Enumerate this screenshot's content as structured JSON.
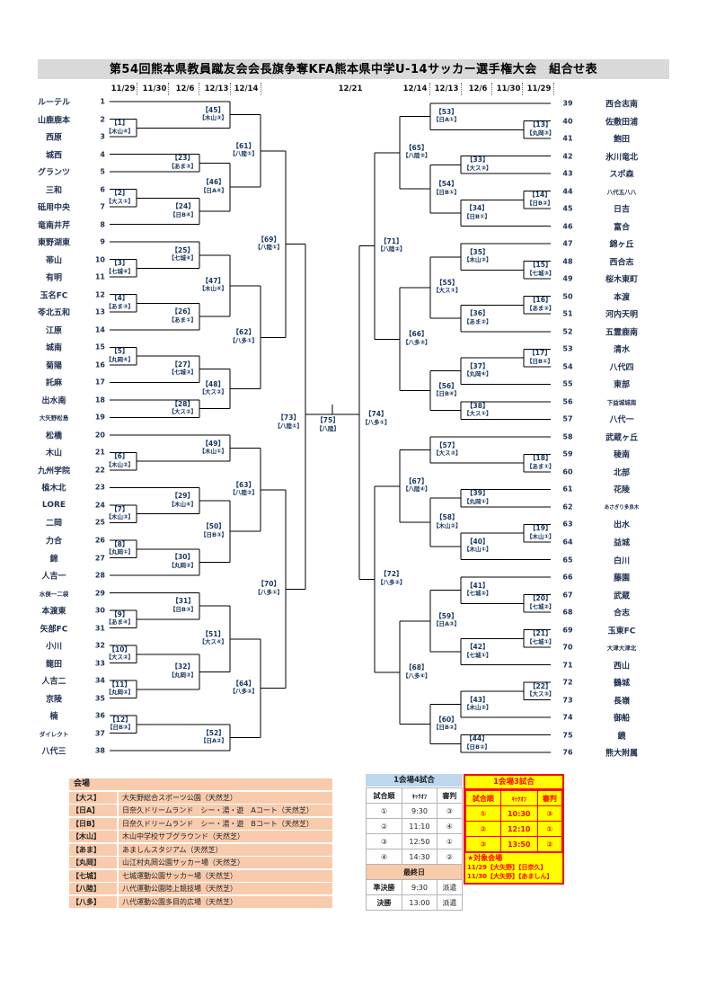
{
  "title": "第54回熊本県教員蹴友会会長旗争奪KFA熊本県中学U-14サッカー選手権大会　組合せ表",
  "dates_left": [
    "11/29",
    "11/30",
    "12/6",
    "12/13",
    "12/14"
  ],
  "date_center": "12/21",
  "dates_right": [
    "12/14",
    "12/13",
    "12/6",
    "11/30",
    "11/29"
  ],
  "teams_left": [
    {
      "no": 1,
      "name": "ルーテル"
    },
    {
      "no": 2,
      "name": "山鹿鹿本"
    },
    {
      "no": 3,
      "name": "西原"
    },
    {
      "no": 4,
      "name": "城西"
    },
    {
      "no": 5,
      "name": "グランツ"
    },
    {
      "no": 6,
      "name": "三和"
    },
    {
      "no": 7,
      "name": "砥用中央"
    },
    {
      "no": 8,
      "name": "竜南井芹"
    },
    {
      "no": 9,
      "name": "東野湖東"
    },
    {
      "no": 10,
      "name": "帯山"
    },
    {
      "no": 11,
      "name": "有明"
    },
    {
      "no": 12,
      "name": "玉名FC"
    },
    {
      "no": 13,
      "name": "苓北五和"
    },
    {
      "no": 14,
      "name": "江原"
    },
    {
      "no": 15,
      "name": "城南"
    },
    {
      "no": 16,
      "name": "菊陽"
    },
    {
      "no": 17,
      "name": "託麻"
    },
    {
      "no": 18,
      "name": "出水南"
    },
    {
      "no": 19,
      "name": "大矢野松島"
    },
    {
      "no": 20,
      "name": "松橋"
    },
    {
      "no": 21,
      "name": "木山"
    },
    {
      "no": 22,
      "name": "九州学院"
    },
    {
      "no": 23,
      "name": "植木北"
    },
    {
      "no": 24,
      "name": "LORE"
    },
    {
      "no": 25,
      "name": "二岡"
    },
    {
      "no": 26,
      "name": "力合"
    },
    {
      "no": 27,
      "name": "錦"
    },
    {
      "no": 28,
      "name": "人吉一"
    },
    {
      "no": 29,
      "name": "水俣一二袋"
    },
    {
      "no": 30,
      "name": "本渡東"
    },
    {
      "no": 31,
      "name": "矢部FC"
    },
    {
      "no": 32,
      "name": "小川"
    },
    {
      "no": 33,
      "name": "龍田"
    },
    {
      "no": 34,
      "name": "人吉二"
    },
    {
      "no": 35,
      "name": "京陵"
    },
    {
      "no": 36,
      "name": "楠"
    },
    {
      "no": 37,
      "name": "ダイレクト"
    },
    {
      "no": 38,
      "name": "八代三"
    }
  ],
  "teams_right": [
    {
      "no": 39,
      "name": "西合志南"
    },
    {
      "no": 40,
      "name": "佐敷田浦"
    },
    {
      "no": 41,
      "name": "飽田"
    },
    {
      "no": 42,
      "name": "氷川竜北"
    },
    {
      "no": 43,
      "name": "スポ森"
    },
    {
      "no": 44,
      "name": "八代五八八"
    },
    {
      "no": 45,
      "name": "日吉"
    },
    {
      "no": 46,
      "name": "富合"
    },
    {
      "no": 47,
      "name": "錦ヶ丘"
    },
    {
      "no": 48,
      "name": "西合志"
    },
    {
      "no": 49,
      "name": "桜木東町"
    },
    {
      "no": 50,
      "name": "本渡"
    },
    {
      "no": 51,
      "name": "河内天明"
    },
    {
      "no": 52,
      "name": "五霊鹿南"
    },
    {
      "no": 53,
      "name": "清水"
    },
    {
      "no": 54,
      "name": "八代四"
    },
    {
      "no": 55,
      "name": "東部"
    },
    {
      "no": 56,
      "name": "下益城城南"
    },
    {
      "no": 57,
      "name": "八代一"
    },
    {
      "no": 58,
      "name": "武蔵ヶ丘"
    },
    {
      "no": 59,
      "name": "稜南"
    },
    {
      "no": 60,
      "name": "北部"
    },
    {
      "no": 61,
      "name": "花陵"
    },
    {
      "no": 62,
      "name": "あさぎり多良木"
    },
    {
      "no": 63,
      "name": "出水"
    },
    {
      "no": 64,
      "name": "益城"
    },
    {
      "no": 65,
      "name": "白川"
    },
    {
      "no": 66,
      "name": "藤園"
    },
    {
      "no": 67,
      "name": "武蔵"
    },
    {
      "no": 68,
      "name": "合志"
    },
    {
      "no": 69,
      "name": "玉東FC"
    },
    {
      "no": 70,
      "name": "大津大津北"
    },
    {
      "no": 71,
      "name": "西山"
    },
    {
      "no": 72,
      "name": "鶴城"
    },
    {
      "no": 73,
      "name": "長嶺"
    },
    {
      "no": 74,
      "name": "御船"
    },
    {
      "no": 75,
      "name": "鏡"
    },
    {
      "no": 76,
      "name": "熊大附属"
    }
  ],
  "matches": [
    {
      "id": 1,
      "venue": "木山④",
      "side": "L",
      "round": 1,
      "a": "t2",
      "b": "t3"
    },
    {
      "id": 2,
      "venue": "大ス①",
      "side": "L",
      "round": 1,
      "a": "t6",
      "b": "t7"
    },
    {
      "id": 3,
      "venue": "七城④",
      "side": "L",
      "round": 1,
      "a": "t10",
      "b": "t11"
    },
    {
      "id": 4,
      "venue": "あま③",
      "side": "L",
      "round": 1,
      "a": "t12",
      "b": "t13"
    },
    {
      "id": 5,
      "venue": "丸岡④",
      "side": "L",
      "round": 1,
      "a": "t15",
      "b": "t16"
    },
    {
      "id": 6,
      "venue": "木山②",
      "side": "L",
      "round": 1,
      "a": "t21",
      "b": "t22"
    },
    {
      "id": 7,
      "venue": "木山③",
      "side": "L",
      "round": 1,
      "a": "t24",
      "b": "t25"
    },
    {
      "id": 8,
      "venue": "丸岡①",
      "side": "L",
      "round": 1,
      "a": "t26",
      "b": "t27"
    },
    {
      "id": 9,
      "venue": "あま④",
      "side": "L",
      "round": 1,
      "a": "t30",
      "b": "t31"
    },
    {
      "id": 10,
      "venue": "大ス②",
      "side": "L",
      "round": 1,
      "a": "t32",
      "b": "t33"
    },
    {
      "id": 11,
      "venue": "丸岡②",
      "side": "L",
      "round": 1,
      "a": "t34",
      "b": "t35"
    },
    {
      "id": 12,
      "venue": "日B③",
      "side": "L",
      "round": 1,
      "a": "t36",
      "b": "t37"
    },
    {
      "id": 13,
      "venue": "丸岡③",
      "side": "R",
      "round": 1,
      "a": "t40",
      "b": "t41"
    },
    {
      "id": 14,
      "venue": "日B②",
      "side": "R",
      "round": 1,
      "a": "t44",
      "b": "t45"
    },
    {
      "id": 15,
      "venue": "七城③",
      "side": "R",
      "round": 1,
      "a": "t48",
      "b": "t49"
    },
    {
      "id": 16,
      "venue": "あま②",
      "side": "R",
      "round": 1,
      "a": "t50",
      "b": "t51"
    },
    {
      "id": 17,
      "venue": "日B①",
      "side": "R",
      "round": 1,
      "a": "t53",
      "b": "t54"
    },
    {
      "id": 18,
      "venue": "あま①",
      "side": "R",
      "round": 1,
      "a": "t59",
      "b": "t60"
    },
    {
      "id": 19,
      "venue": "木山①",
      "side": "R",
      "round": 1,
      "a": "t63",
      "b": "t64"
    },
    {
      "id": 20,
      "venue": "七城②",
      "side": "R",
      "round": 1,
      "a": "t67",
      "b": "t68"
    },
    {
      "id": 21,
      "venue": "七城①",
      "side": "R",
      "round": 1,
      "a": "t69",
      "b": "t70"
    },
    {
      "id": 22,
      "venue": "大ス③",
      "side": "R",
      "round": 1,
      "a": "t72",
      "b": "t73"
    },
    {
      "id": 23,
      "venue": "あま③",
      "side": "L",
      "round": 2,
      "a": "t4",
      "b": "t5"
    },
    {
      "id": 24,
      "venue": "日B④",
      "side": "L",
      "round": 2,
      "a": "m2",
      "b": "t8"
    },
    {
      "id": 25,
      "venue": "七城④",
      "side": "L",
      "round": 2,
      "a": "t9",
      "b": "m3"
    },
    {
      "id": 26,
      "venue": "あま①",
      "side": "L",
      "round": 2,
      "a": "m4",
      "b": "t14"
    },
    {
      "id": 27,
      "venue": "七城③",
      "side": "L",
      "round": 2,
      "a": "m5",
      "b": "t17"
    },
    {
      "id": 28,
      "venue": "大ス②",
      "side": "L",
      "round": 2,
      "a": "t18",
      "b": "t19"
    },
    {
      "id": 29,
      "venue": "木山④",
      "side": "L",
      "round": 2,
      "a": "t23",
      "b": "m7"
    },
    {
      "id": 30,
      "venue": "丸岡②",
      "side": "L",
      "round": 2,
      "a": "m8",
      "b": "t28"
    },
    {
      "id": 31,
      "venue": "日B③",
      "side": "L",
      "round": 2,
      "a": "t29",
      "b": "m9"
    },
    {
      "id": 32,
      "venue": "丸岡③",
      "side": "L",
      "round": 2,
      "a": "m10",
      "b": "m11"
    },
    {
      "id": 33,
      "venue": "大ス③",
      "side": "R",
      "round": 2,
      "a": "t42",
      "b": "t43"
    },
    {
      "id": 34,
      "venue": "日B①",
      "side": "R",
      "round": 2,
      "a": "m14",
      "b": "t46"
    },
    {
      "id": 35,
      "venue": "木山③",
      "side": "R",
      "round": 2,
      "a": "t47",
      "b": "m15"
    },
    {
      "id": 36,
      "venue": "あま②",
      "side": "R",
      "round": 2,
      "a": "m16",
      "b": "t52"
    },
    {
      "id": 37,
      "venue": "丸岡④",
      "side": "R",
      "round": 2,
      "a": "m17",
      "b": "t55"
    },
    {
      "id": 38,
      "venue": "大ス①",
      "side": "R",
      "round": 2,
      "a": "t56",
      "b": "t57"
    },
    {
      "id": 39,
      "venue": "丸岡①",
      "side": "R",
      "round": 2,
      "a": "t61",
      "b": "t62"
    },
    {
      "id": 40,
      "venue": "木山①",
      "side": "R",
      "round": 2,
      "a": "m19",
      "b": "t65"
    },
    {
      "id": 41,
      "venue": "七城②",
      "side": "R",
      "round": 2,
      "a": "t66",
      "b": "m20"
    },
    {
      "id": 42,
      "venue": "七城①",
      "side": "R",
      "round": 2,
      "a": "m21",
      "b": "t71"
    },
    {
      "id": 43,
      "venue": "木山②",
      "side": "R",
      "round": 2,
      "a": "m22",
      "b": "t74"
    },
    {
      "id": 44,
      "venue": "日B②",
      "side": "R",
      "round": 2,
      "a": "t75",
      "b": "t76"
    },
    {
      "id": 45,
      "venue": "木山③",
      "side": "L",
      "round": 3,
      "a": "t1",
      "b": "m1"
    },
    {
      "id": 46,
      "venue": "日A④",
      "side": "L",
      "round": 3,
      "a": "m23",
      "b": "m24"
    },
    {
      "id": 47,
      "venue": "木山④",
      "side": "L",
      "round": 3,
      "a": "m25",
      "b": "m26"
    },
    {
      "id": 48,
      "venue": "大ス②",
      "side": "L",
      "round": 3,
      "a": "m27",
      "b": "m28"
    },
    {
      "id": 49,
      "venue": "木山①",
      "side": "L",
      "round": 3,
      "a": "t20",
      "b": "m6"
    },
    {
      "id": 50,
      "venue": "日B③",
      "side": "L",
      "round": 3,
      "a": "m29",
      "b": "m30"
    },
    {
      "id": 51,
      "venue": "大ス④",
      "side": "L",
      "round": 3,
      "a": "m31",
      "b": "m32"
    },
    {
      "id": 52,
      "venue": "日A②",
      "side": "L",
      "round": 3,
      "a": "m12",
      "b": "t38"
    },
    {
      "id": 53,
      "venue": "日A①",
      "side": "R",
      "round": 3,
      "a": "t39",
      "b": "m13"
    },
    {
      "id": 54,
      "venue": "日B①",
      "side": "R",
      "round": 3,
      "a": "m33",
      "b": "m34"
    },
    {
      "id": 55,
      "venue": "大ス①",
      "side": "R",
      "round": 3,
      "a": "m35",
      "b": "m36"
    },
    {
      "id": 56,
      "venue": "日B④",
      "side": "R",
      "round": 3,
      "a": "m37",
      "b": "m38"
    },
    {
      "id": 57,
      "venue": "大ス③",
      "side": "R",
      "round": 3,
      "a": "t58",
      "b": "m18"
    },
    {
      "id": 58,
      "venue": "木山②",
      "side": "R",
      "round": 3,
      "a": "m39",
      "b": "m40"
    },
    {
      "id": 59,
      "venue": "日A③",
      "side": "R",
      "round": 3,
      "a": "m41",
      "b": "m42"
    },
    {
      "id": 60,
      "venue": "日B②",
      "side": "R",
      "round": 3,
      "a": "m43",
      "b": "m44"
    },
    {
      "id": 61,
      "venue": "八陸①",
      "side": "L",
      "round": 4,
      "a": "m45",
      "b": "m46"
    },
    {
      "id": 62,
      "venue": "八多①",
      "side": "L",
      "round": 4,
      "a": "m47",
      "b": "m48"
    },
    {
      "id": 63,
      "venue": "八陸②",
      "side": "L",
      "round": 4,
      "a": "m49",
      "b": "m50"
    },
    {
      "id": 64,
      "venue": "八多②",
      "side": "L",
      "round": 4,
      "a": "m51",
      "b": "m52"
    },
    {
      "id": 65,
      "venue": "八陸③",
      "side": "R",
      "round": 4,
      "a": "m53",
      "b": "m54"
    },
    {
      "id": 66,
      "venue": "八多③",
      "side": "R",
      "round": 4,
      "a": "m55",
      "b": "m56"
    },
    {
      "id": 67,
      "venue": "八陸④",
      "side": "R",
      "round": 4,
      "a": "m57",
      "b": "m58"
    },
    {
      "id": 68,
      "venue": "八多④",
      "side": "R",
      "round": 4,
      "a": "m59",
      "b": "m60"
    },
    {
      "id": 69,
      "venue": "八陸①",
      "side": "L",
      "round": 5,
      "a": "m61",
      "b": "m62"
    },
    {
      "id": 70,
      "venue": "八多①",
      "side": "L",
      "round": 5,
      "a": "m63",
      "b": "m64"
    },
    {
      "id": 71,
      "venue": "八陸②",
      "side": "R",
      "round": 5,
      "a": "m65",
      "b": "m66"
    },
    {
      "id": 72,
      "venue": "八多②",
      "side": "R",
      "round": 5,
      "a": "m67",
      "b": "m68"
    },
    {
      "id": 73,
      "venue": "八陸①",
      "side": "L",
      "round": 6,
      "a": "m69",
      "b": "m70"
    },
    {
      "id": 74,
      "venue": "八多①",
      "side": "R",
      "round": 6,
      "a": "m71",
      "b": "m72"
    }
  ],
  "final_match": {
    "id": 75,
    "venue": "八陸",
    "a": "m73",
    "b": "m74"
  },
  "venue_table": {
    "header": "会場",
    "rows": [
      [
        "【大ス】",
        "大矢野総合スポーツ公園（天然芝）"
      ],
      [
        "【日A】",
        "日奈久ドリームランド　シー・湯・遊　Aコート（天然芝）"
      ],
      [
        "【日B】",
        "日奈久ドリームランド　シー・湯・遊　Bコート（天然芝）"
      ],
      [
        "【木山】",
        "木山中学校サブグラウンド（天然芝）"
      ],
      [
        "【あま】",
        "あましんスタジアム（天然芝）"
      ],
      [
        "【丸岡】",
        "山江村丸岡公園サッカー場（天然芝）"
      ],
      [
        "【七城】",
        "七城運動公園サッカー場（天然芝）"
      ],
      [
        "【八陸】",
        "八代運動公園陸上競技場（天然芝）"
      ],
      [
        "【八多】",
        "八代運動公園多目的広場（天然芝）"
      ]
    ]
  },
  "schedule4": {
    "title": "1会場4試合",
    "headers": [
      "試合順",
      "ｷｯｸｵﾌ",
      "審判"
    ],
    "rows": [
      [
        "①",
        "9:30",
        "③"
      ],
      [
        "②",
        "11:10",
        "④"
      ],
      [
        "③",
        "12:50",
        "①"
      ],
      [
        "④",
        "14:30",
        "②"
      ]
    ],
    "final_header": "最終日",
    "final_rows": [
      [
        "準決勝",
        "9:30",
        "派遣"
      ],
      [
        "決勝",
        "13:00",
        "派遣"
      ]
    ]
  },
  "schedule3": {
    "title": "1会場3試合",
    "headers": [
      "試合順",
      "ｷｯｸｵﾌ",
      "審判"
    ],
    "rows": [
      [
        "①",
        "10:30",
        "③"
      ],
      [
        "②",
        "12:10",
        "①"
      ],
      [
        "③",
        "13:50",
        "②"
      ]
    ],
    "note": [
      "★対象会場",
      "11/29【大矢野】【日奈久】",
      "11/30【大矢野】【あましん】"
    ]
  }
}
